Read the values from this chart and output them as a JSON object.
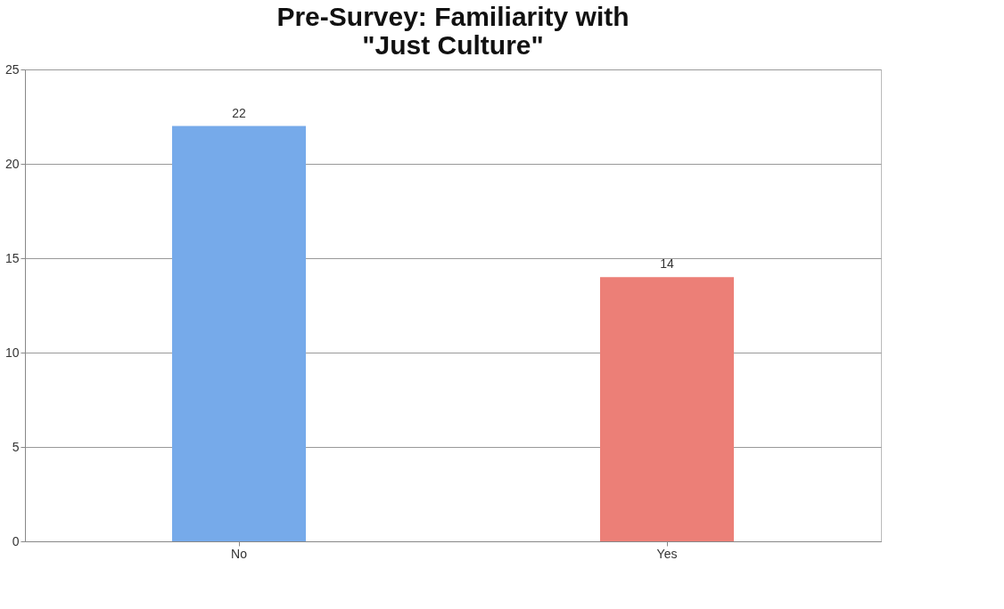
{
  "chart_data": {
    "type": "bar",
    "title": "Pre-Survey: Familiarity with \"Just Culture\"",
    "categories": [
      "No",
      "Yes"
    ],
    "values": [
      22,
      14
    ],
    "colors": [
      "#76aaea",
      "#ec7f77"
    ],
    "ylim": [
      0,
      25
    ],
    "yticks": [
      0,
      5,
      10,
      15,
      20,
      25
    ],
    "grid": "y",
    "data_labels": true
  }
}
